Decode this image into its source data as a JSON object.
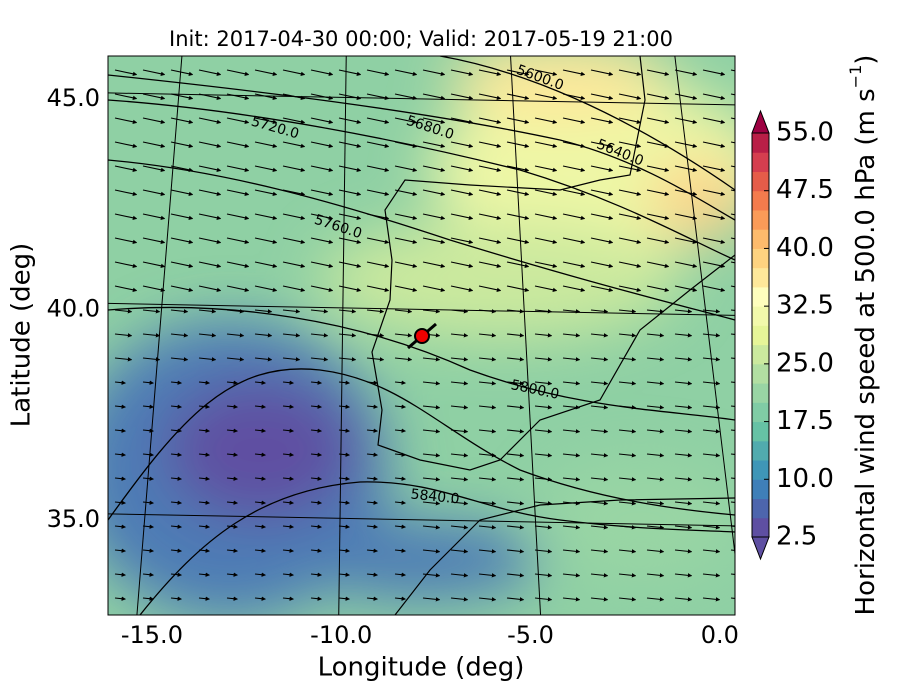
{
  "chart_data": {
    "type": "contourf_map",
    "title": "Init: 2017-04-30 00:00; Valid: 2017-05-19 21:00",
    "xlabel": "Longitude (deg)",
    "ylabel": "Latitude (deg)",
    "xlim": [
      -16.16,
      0.4
    ],
    "ylim": [
      32.74,
      46.02
    ],
    "xticks": [
      {
        "value": -15,
        "label": "-15.0"
      },
      {
        "value": -10,
        "label": "-10.0"
      },
      {
        "value": -5,
        "label": "-5.0"
      },
      {
        "value": 0,
        "label": "0.0"
      }
    ],
    "yticks": [
      {
        "value": 35,
        "label": "35.0"
      },
      {
        "value": 40,
        "label": "40.0"
      },
      {
        "value": 45,
        "label": "45.0"
      }
    ],
    "contour_labels": [
      "5600.0",
      "5640.0",
      "5680.0",
      "5720.0",
      "5760.0",
      "5800.0",
      "5840.0"
    ],
    "colorbar": {
      "label_parts": [
        "Horizontal wind speed at 500.0 hPa (m s",
        "−1",
        ")"
      ],
      "lim": [
        2.5,
        55
      ],
      "ticks": [
        {
          "value": 2.5,
          "label": "2.5"
        },
        {
          "value": 10,
          "label": "10.0"
        },
        {
          "value": 17.5,
          "label": "17.5"
        },
        {
          "value": 25,
          "label": "25.0"
        },
        {
          "value": 32.5,
          "label": "32.5"
        },
        {
          "value": 40,
          "label": "40.0"
        },
        {
          "value": 47.5,
          "label": "47.5"
        },
        {
          "value": 55,
          "label": "55.0"
        }
      ],
      "colors": [
        "#5e4fa2",
        "#4d65ad",
        "#3f7fb8",
        "#3f96b7",
        "#51abae",
        "#66c2a5",
        "#80cca5",
        "#99d5a4",
        "#b2dfa2",
        "#cbe99e",
        "#e6f598",
        "#f2f9ab",
        "#fefebd",
        "#fee89a",
        "#fed380",
        "#fdbb6c",
        "#fa9b58",
        "#f47b4d",
        "#e55c49",
        "#d53e4f",
        "#b91f47"
      ],
      "over_color": "#9e0142"
    }
  }
}
